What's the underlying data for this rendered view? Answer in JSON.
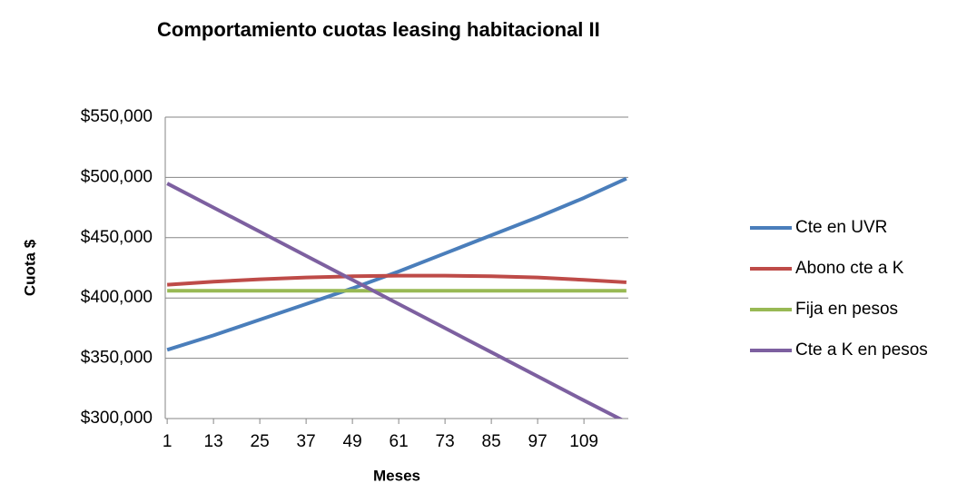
{
  "chart_data": {
    "type": "line",
    "title": "Comportamiento cuotas leasing habitacional  II",
    "x_label": "Meses",
    "y_label": "Cuota $",
    "x": [
      1,
      13,
      25,
      37,
      49,
      61,
      73,
      85,
      97,
      109,
      120
    ],
    "xlim": [
      0.5,
      120.5
    ],
    "xticks": [
      1,
      13,
      25,
      37,
      49,
      61,
      73,
      85,
      97,
      109
    ],
    "ylim": [
      300000,
      550000
    ],
    "yticks": [
      {
        "value": 300000,
        "label": "$300,000"
      },
      {
        "value": 350000,
        "label": "$350,000"
      },
      {
        "value": 400000,
        "label": "$400,000"
      },
      {
        "value": 450000,
        "label": "$450,000"
      },
      {
        "value": 500000,
        "label": "$500,000"
      },
      {
        "value": 550000,
        "label": "$550,000"
      }
    ],
    "grid": true,
    "legend": "right",
    "series": [
      {
        "name": "Cte en UVR",
        "color": "#4a7ebb",
        "values": [
          357000,
          369000,
          382000,
          395000,
          408000,
          422000,
          437000,
          452000,
          467000,
          483000,
          499000
        ]
      },
      {
        "name": "Abono cte a K",
        "color": "#be4b48",
        "values": [
          411000,
          413500,
          415500,
          417000,
          418000,
          418500,
          418500,
          418000,
          417000,
          415000,
          413000
        ]
      },
      {
        "name": "Fija en pesos",
        "color": "#98b954",
        "values": [
          406000,
          406000,
          406000,
          406000,
          406000,
          406000,
          406000,
          406000,
          406000,
          406000,
          406000
        ]
      },
      {
        "name": "Cte a K en pesos",
        "color": "#7d60a0",
        "values": [
          495000,
          475000,
          455000,
          435000,
          415000,
          395000,
          375000,
          355000,
          335000,
          315000,
          297000
        ]
      }
    ]
  }
}
